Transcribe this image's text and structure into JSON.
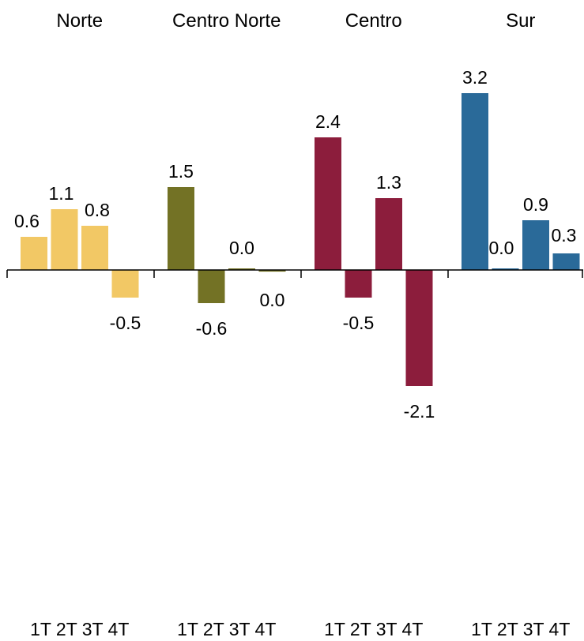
{
  "chart_data": {
    "type": "bar",
    "groups": [
      {
        "name": "Norte",
        "color": "#f2c865",
        "categories": [
          "1T",
          "2T",
          "3T",
          "4T"
        ],
        "values": [
          0.6,
          1.1,
          0.8,
          -0.5
        ],
        "labels": [
          "0.6",
          "1.1",
          "0.8",
          "-0.5"
        ]
      },
      {
        "name": "Centro Norte",
        "color": "#737225",
        "categories": [
          "1T",
          "2T",
          "3T",
          "4T"
        ],
        "values": [
          1.5,
          -0.6,
          0.0,
          -0.03
        ],
        "labels": [
          "1.5",
          "-0.6",
          "0.0",
          "0.0"
        ]
      },
      {
        "name": "Centro",
        "color": "#8c1d3c",
        "categories": [
          "1T",
          "2T",
          "3T",
          "4T"
        ],
        "values": [
          2.4,
          -0.5,
          1.3,
          -2.1
        ],
        "labels": [
          "2.4",
          "-0.5",
          "1.3",
          "-2.1"
        ]
      },
      {
        "name": "Sur",
        "color": "#2a6a99",
        "categories": [
          "1T",
          "2T",
          "3T",
          "4T"
        ],
        "values": [
          3.2,
          0.0,
          0.9,
          0.3
        ],
        "labels": [
          "3.2",
          "0.0",
          "0.9",
          "0.3"
        ]
      }
    ],
    "xlabel": "",
    "ylabel": "",
    "grid": false,
    "legend": "none"
  }
}
